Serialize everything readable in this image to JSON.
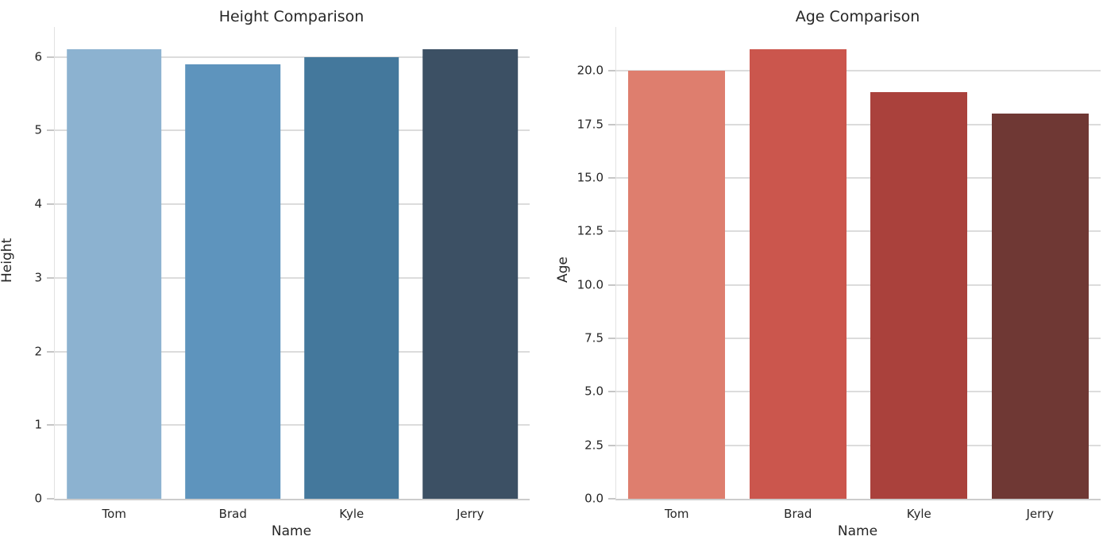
{
  "chart_data": [
    {
      "type": "bar",
      "title": "Height Comparison",
      "xlabel": "Name",
      "ylabel": "Height",
      "categories": [
        "Tom",
        "Brad",
        "Kyle",
        "Jerry"
      ],
      "values": [
        6.1,
        5.9,
        6.0,
        6.1
      ],
      "ylim": [
        0,
        6.405
      ],
      "yticks": [
        {
          "label": "0",
          "value": 0
        },
        {
          "label": "1",
          "value": 1
        },
        {
          "label": "2",
          "value": 2
        },
        {
          "label": "3",
          "value": 3
        },
        {
          "label": "4",
          "value": 4
        },
        {
          "label": "5",
          "value": 5
        },
        {
          "label": "6",
          "value": 6
        }
      ],
      "bar_colors": [
        "#8cb2d0",
        "#5e94bd",
        "#44789c",
        "#3c5064"
      ],
      "grid": "horizontal",
      "legend": "none"
    },
    {
      "type": "bar",
      "title": "Age Comparison",
      "xlabel": "Name",
      "ylabel": "Age",
      "categories": [
        "Tom",
        "Brad",
        "Kyle",
        "Jerry"
      ],
      "values": [
        20,
        21,
        19,
        18
      ],
      "ylim": [
        0,
        22.05
      ],
      "yticks": [
        {
          "label": "0.0",
          "value": 0
        },
        {
          "label": "2.5",
          "value": 2.5
        },
        {
          "label": "5.0",
          "value": 5
        },
        {
          "label": "7.5",
          "value": 7.5
        },
        {
          "label": "10.0",
          "value": 10
        },
        {
          "label": "12.5",
          "value": 12.5
        },
        {
          "label": "15.0",
          "value": 15
        },
        {
          "label": "17.5",
          "value": 17.5
        },
        {
          "label": "20.0",
          "value": 20
        }
      ],
      "bar_colors": [
        "#de7e6e",
        "#cb564d",
        "#aa413c",
        "#6f3834"
      ],
      "grid": "horizontal",
      "legend": "none"
    }
  ],
  "style": {
    "background": "#ffffff",
    "grid_color": "#dcdcdc",
    "spine_color": "#cccccc",
    "text_color": "#262626"
  }
}
